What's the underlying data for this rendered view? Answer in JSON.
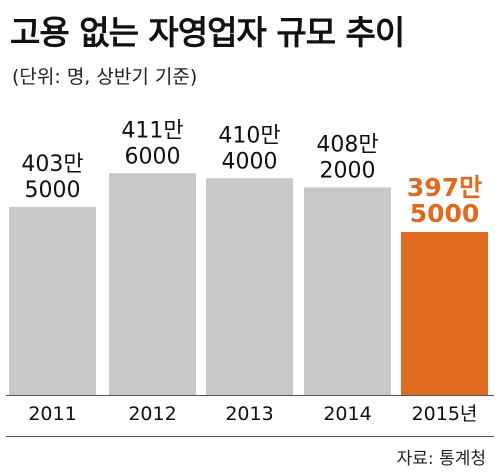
{
  "title": "고용 없는 자영업자 규모 추이",
  "subtitle": "(단위: 명, 상반기 기준)",
  "source": "자료: 통계청",
  "colors": {
    "bar": "#c8c8c8",
    "highlight": "#e06a1f",
    "text": "#111111",
    "axis": "#555555"
  },
  "chart_data": {
    "type": "bar",
    "categories": [
      "2011",
      "2012",
      "2013",
      "2014",
      "2015년"
    ],
    "values": [
      4035000,
      4116000,
      4104000,
      4082000,
      3975000
    ],
    "value_labels": [
      [
        "403만",
        "5000"
      ],
      [
        "411만",
        "6000"
      ],
      [
        "410만",
        "4000"
      ],
      [
        "408만",
        "2000"
      ],
      [
        "397만",
        "5000"
      ]
    ],
    "highlight_index": 4,
    "title": "고용 없는 자영업자 규모 추이",
    "xlabel": "",
    "ylabel": "",
    "grid": false,
    "legend": "none"
  }
}
